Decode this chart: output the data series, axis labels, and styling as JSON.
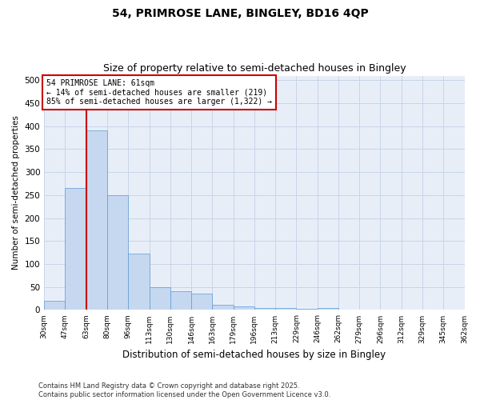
{
  "title": "54, PRIMROSE LANE, BINGLEY, BD16 4QP",
  "subtitle": "Size of property relative to semi-detached houses in Bingley",
  "xlabel": "Distribution of semi-detached houses by size in Bingley",
  "ylabel": "Number of semi-detached properties",
  "bins": [
    "30sqm",
    "47sqm",
    "63sqm",
    "80sqm",
    "96sqm",
    "113sqm",
    "130sqm",
    "146sqm",
    "163sqm",
    "179sqm",
    "196sqm",
    "213sqm",
    "229sqm",
    "246sqm",
    "262sqm",
    "279sqm",
    "296sqm",
    "312sqm",
    "329sqm",
    "345sqm",
    "362sqm"
  ],
  "bar_heights": [
    20,
    265,
    390,
    250,
    122,
    50,
    40,
    35,
    12,
    8,
    5,
    4,
    2,
    5,
    1,
    1,
    0,
    0,
    0,
    0
  ],
  "bar_color": "#c5d8f0",
  "bar_edge_color": "#5b9bd5",
  "grid_color": "#c8d4e8",
  "background_color": "#e8eef8",
  "annotation_text": "54 PRIMROSE LANE: 61sqm\n← 14% of semi-detached houses are smaller (219)\n85% of semi-detached houses are larger (1,322) →",
  "annotation_box_color": "#ffffff",
  "annotation_box_edge": "#cc0000",
  "red_line_x": 2,
  "ylim": [
    0,
    510
  ],
  "yticks": [
    0,
    50,
    100,
    150,
    200,
    250,
    300,
    350,
    400,
    450,
    500
  ],
  "footer": "Contains HM Land Registry data © Crown copyright and database right 2025.\nContains public sector information licensed under the Open Government Licence v3.0.",
  "title_fontsize": 10,
  "subtitle_fontsize": 9
}
